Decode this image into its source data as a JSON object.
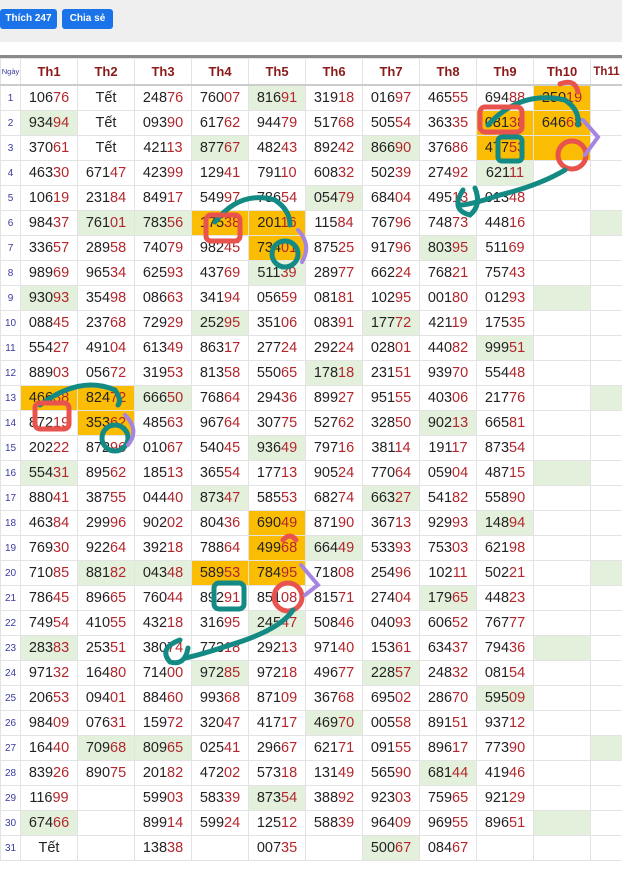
{
  "toolbar": {
    "like_label": "Thích 247",
    "share_label": "Chia sẻ"
  },
  "colors": {
    "green": "#e3f1dc",
    "orange": "#fbbc04",
    "digit_red": "#b3262c",
    "button": "#1a73e8"
  },
  "table": {
    "headers": [
      "Ngày",
      "Th1",
      "Th2",
      "Th3",
      "Th4",
      "Th5",
      "Th6",
      "Th7",
      "Th8",
      "Th9",
      "Th10",
      "Th11"
    ],
    "rows": [
      [
        "1",
        "10676",
        "Tết",
        "24876",
        "76007",
        "81691",
        "31918",
        "01697",
        "46555",
        "69488",
        "25019",
        ""
      ],
      [
        "2",
        "93494",
        "Tết",
        "09390",
        "61762",
        "94479",
        "51768",
        "50554",
        "36335",
        "08138",
        "64668",
        ""
      ],
      [
        "3",
        "37061",
        "Tết",
        "42113",
        "87767",
        "48243",
        "89242",
        "86690",
        "37686",
        "47753",
        "",
        ""
      ],
      [
        "4",
        "46330",
        "67147",
        "42399",
        "12941",
        "79110",
        "60832",
        "50239",
        "27492",
        "62111",
        "",
        ""
      ],
      [
        "5",
        "10619",
        "23184",
        "84917",
        "54997",
        "78654",
        "05479",
        "68404",
        "49513",
        "01348",
        "",
        ""
      ],
      [
        "6",
        "98437",
        "76101",
        "78356",
        "17538",
        "20116",
        "11584",
        "76796",
        "74873",
        "44816",
        "",
        ""
      ],
      [
        "7",
        "33657",
        "28958",
        "74079",
        "98245",
        "73401",
        "87525",
        "91796",
        "80395",
        "51169",
        "",
        ""
      ],
      [
        "8",
        "98969",
        "96534",
        "62593",
        "43769",
        "51139",
        "28977",
        "66224",
        "76821",
        "75743",
        "",
        ""
      ],
      [
        "9",
        "93093",
        "35498",
        "08663",
        "34194",
        "05659",
        "08181",
        "10295",
        "00180",
        "01293",
        "",
        ""
      ],
      [
        "10",
        "08845",
        "23768",
        "72929",
        "25295",
        "35106",
        "08391",
        "17772",
        "42119",
        "17535",
        "",
        ""
      ],
      [
        "11",
        "55427",
        "49104",
        "61349",
        "86317",
        "27724",
        "29224",
        "02801",
        "44082",
        "99951",
        "",
        ""
      ],
      [
        "12",
        "88903",
        "05672",
        "31953",
        "81358",
        "55065",
        "17818",
        "23151",
        "93970",
        "55448",
        "",
        ""
      ],
      [
        "13",
        "46638",
        "82472",
        "66650",
        "76864",
        "29436",
        "89927",
        "95155",
        "40306",
        "21776",
        "",
        ""
      ],
      [
        "14",
        "87219",
        "35362",
        "48563",
        "96764",
        "30775",
        "52762",
        "32850",
        "90213",
        "66581",
        "",
        ""
      ],
      [
        "15",
        "20222",
        "87296",
        "01067",
        "54045",
        "93649",
        "79716",
        "38114",
        "19117",
        "87354",
        "",
        ""
      ],
      [
        "16",
        "55431",
        "89562",
        "18513",
        "36554",
        "17713",
        "90524",
        "77064",
        "05904",
        "48715",
        "",
        ""
      ],
      [
        "17",
        "88041",
        "38755",
        "04440",
        "87347",
        "58553",
        "68274",
        "66327",
        "54182",
        "55890",
        "",
        ""
      ],
      [
        "18",
        "46384",
        "29996",
        "90202",
        "80436",
        "69049",
        "87190",
        "36713",
        "92993",
        "14894",
        "",
        ""
      ],
      [
        "19",
        "76930",
        "92264",
        "39218",
        "78864",
        "49968",
        "66449",
        "53393",
        "75303",
        "62198",
        "",
        ""
      ],
      [
        "20",
        "71085",
        "88182",
        "04348",
        "58953",
        "78495",
        "71808",
        "25496",
        "10211",
        "50221",
        "",
        ""
      ],
      [
        "21",
        "78645",
        "89665",
        "76044",
        "89291",
        "85108",
        "81571",
        "27404",
        "17965",
        "44823",
        "",
        ""
      ],
      [
        "22",
        "74954",
        "41055",
        "43218",
        "31695",
        "24547",
        "50846",
        "04093",
        "60652",
        "76777",
        "",
        ""
      ],
      [
        "23",
        "28383",
        "25351",
        "38074",
        "77318",
        "29213",
        "97140",
        "15361",
        "63437",
        "79436",
        "",
        ""
      ],
      [
        "24",
        "97132",
        "16480",
        "71400",
        "97285",
        "97218",
        "49677",
        "22857",
        "24832",
        "08154",
        "",
        ""
      ],
      [
        "25",
        "20653",
        "09401",
        "88460",
        "99368",
        "87109",
        "36768",
        "69502",
        "28670",
        "59509",
        "",
        ""
      ],
      [
        "26",
        "98409",
        "07631",
        "15972",
        "32047",
        "41717",
        "46970",
        "00558",
        "89151",
        "93712",
        "",
        ""
      ],
      [
        "27",
        "16440",
        "70968",
        "80965",
        "02541",
        "29667",
        "62171",
        "09155",
        "89617",
        "77390",
        "",
        ""
      ],
      [
        "28",
        "83926",
        "89075",
        "20182",
        "47202",
        "57318",
        "13149",
        "56590",
        "68144",
        "41946",
        "",
        ""
      ],
      [
        "29",
        "11699",
        "",
        "59903",
        "58339",
        "87354",
        "38892",
        "92303",
        "75965",
        "92129",
        "",
        ""
      ],
      [
        "30",
        "67466",
        "",
        "89914",
        "59924",
        "12512",
        "58839",
        "96409",
        "96955",
        "89651",
        "",
        ""
      ],
      [
        "31",
        "Tết",
        "",
        "13838",
        "",
        "00735",
        "",
        "50067",
        "08467",
        "",
        "",
        ""
      ]
    ],
    "highlights": {
      "green": [
        "1-5",
        "2-1",
        "3-4",
        "3-7",
        "4-9",
        "5-6",
        "6-2",
        "6-3",
        "6-11",
        "7-8",
        "8-5",
        "9-1",
        "9-10",
        "10-4",
        "10-7",
        "11-9",
        "12-6",
        "13-3",
        "13-11",
        "14-8",
        "15-5",
        "16-1",
        "16-10",
        "17-4",
        "17-7",
        "18-9",
        "19-6",
        "20-2",
        "20-3",
        "20-11",
        "21-8",
        "22-5",
        "23-1",
        "23-10",
        "24-4",
        "24-7",
        "25-9",
        "26-6",
        "27-2",
        "27-3",
        "27-11",
        "28-8",
        "29-5",
        "30-1",
        "30-10",
        "31-7"
      ],
      "orange": [
        "1-10",
        "2-9",
        "2-10",
        "3-9",
        "3-10",
        "6-4",
        "6-5",
        "7-5",
        "13-1",
        "13-2",
        "14-2",
        "18-5",
        "19-5",
        "20-4",
        "20-5"
      ]
    }
  }
}
